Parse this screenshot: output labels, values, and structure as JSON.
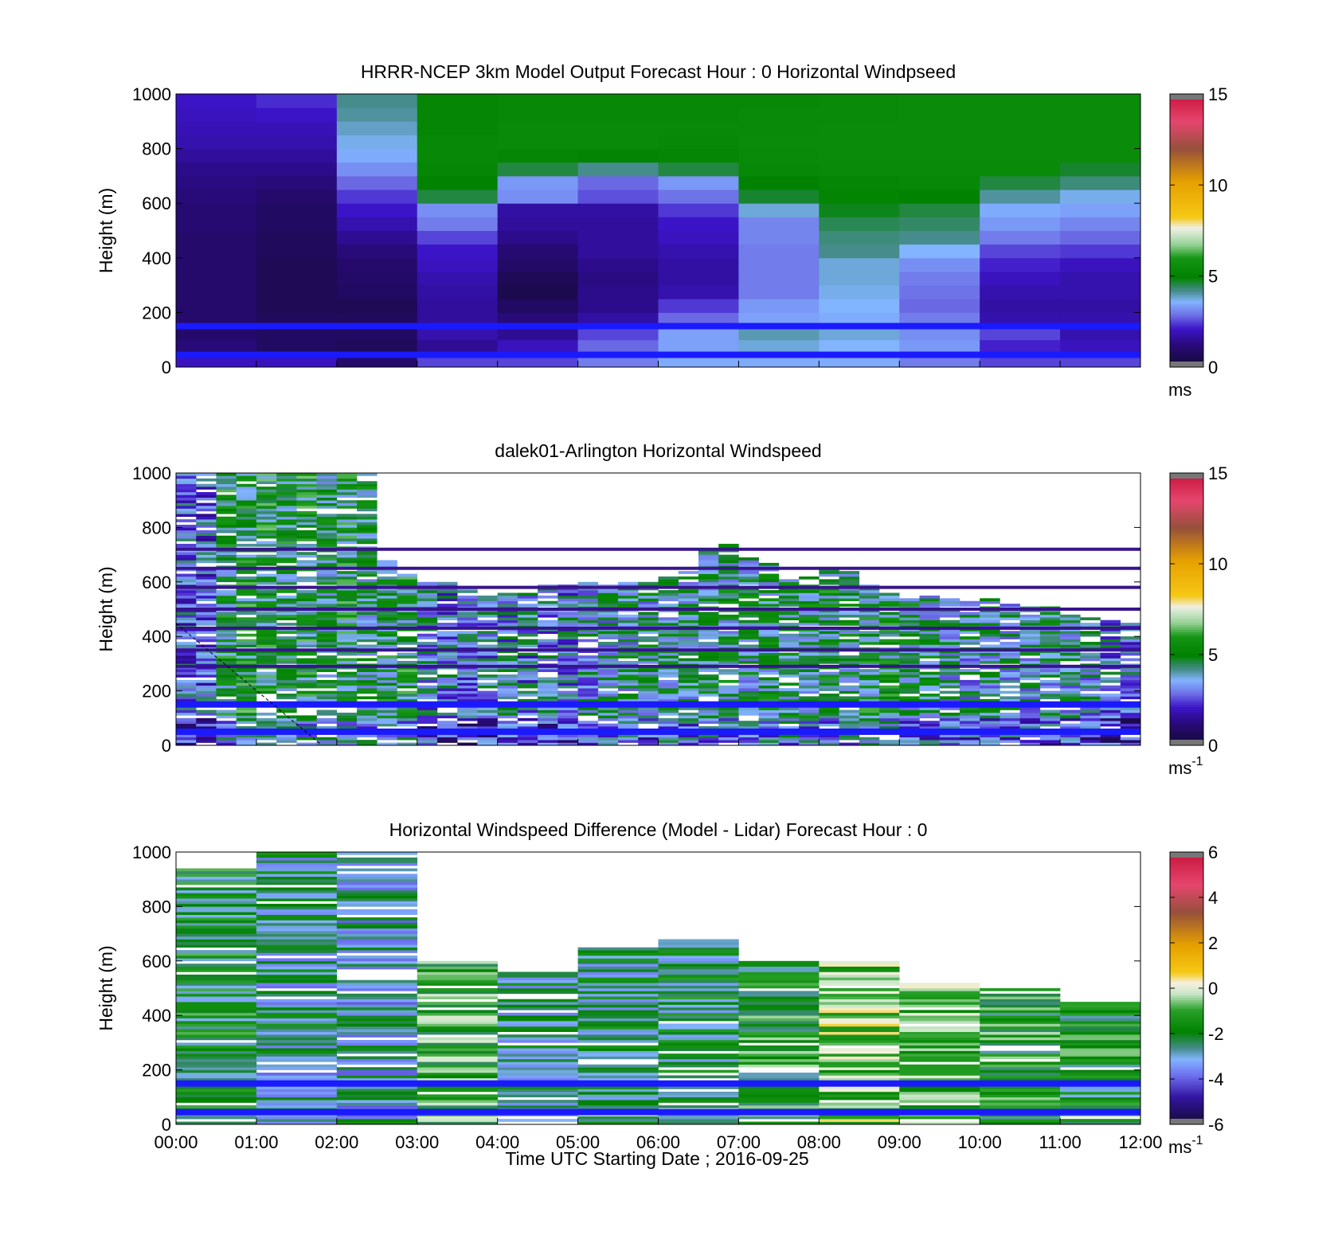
{
  "figure": {
    "xlabel": "Time UTC  Starting Date ; 2016-09-25",
    "x_ticks": [
      "00:00",
      "01:00",
      "02:00",
      "03:00",
      "04:00",
      "05:00",
      "06:00",
      "07:00",
      "08:00",
      "09:00",
      "10:00",
      "11:00",
      "12:00"
    ]
  },
  "chart_data": [
    {
      "type": "heatmap",
      "title": "HRRR-NCEP 3km Model Output   Forecast Hour : 0 Horizontal Windpseed",
      "ylabel": "Height (m)",
      "y_ticks": [
        "0",
        "200",
        "400",
        "600",
        "800",
        "1000"
      ],
      "xlim_hours": [
        0,
        12
      ],
      "ylim": [
        0,
        1000
      ],
      "colorbar": {
        "ticks": [
          "0",
          "5",
          "10",
          "15"
        ],
        "range": [
          0,
          15
        ],
        "unit": "ms",
        "unit_sup": ""
      },
      "heights": [
        25,
        75,
        125,
        175,
        225,
        275,
        325,
        375,
        425,
        475,
        525,
        575,
        625,
        675,
        725,
        775,
        825,
        875,
        925,
        975
      ],
      "time_hours": [
        0,
        1,
        2,
        3,
        4,
        5,
        6,
        7,
        8,
        9,
        10,
        11
      ],
      "values": [
        [
          2.0,
          2.0,
          1.0,
          2.5,
          2.5,
          3.0,
          3.5,
          3.5,
          3.5,
          3.0,
          2.5,
          2.5
        ],
        [
          1.2,
          0.8,
          0.7,
          1.5,
          2.0,
          2.8,
          3.4,
          3.8,
          3.6,
          3.3,
          2.2,
          2.0
        ],
        [
          1.0,
          0.8,
          0.8,
          1.8,
          1.5,
          2.5,
          3.4,
          4.0,
          3.8,
          3.2,
          2.5,
          1.8
        ],
        [
          1.0,
          0.7,
          0.7,
          1.6,
          1.2,
          1.7,
          2.8,
          3.4,
          3.5,
          3.0,
          1.8,
          1.8
        ],
        [
          1.0,
          0.6,
          0.6,
          1.6,
          0.8,
          1.4,
          2.4,
          3.3,
          3.6,
          2.8,
          1.7,
          1.7
        ],
        [
          1.0,
          0.6,
          0.8,
          1.7,
          0.5,
          1.4,
          1.8,
          3.0,
          3.7,
          2.9,
          1.8,
          1.8
        ],
        [
          1.0,
          0.6,
          0.9,
          1.8,
          0.6,
          1.3,
          1.7,
          3.0,
          3.8,
          3.0,
          2.0,
          1.8
        ],
        [
          1.0,
          0.6,
          1.0,
          2.0,
          0.9,
          1.4,
          1.7,
          3.0,
          3.8,
          3.2,
          2.2,
          2.0
        ],
        [
          1.0,
          0.7,
          1.2,
          2.1,
          1.1,
          1.6,
          1.8,
          3.0,
          4.2,
          3.6,
          2.5,
          2.4
        ],
        [
          1.0,
          0.7,
          1.5,
          2.5,
          1.4,
          1.6,
          2.0,
          3.1,
          4.3,
          4.2,
          3.0,
          2.8
        ],
        [
          1.1,
          0.8,
          1.8,
          3.0,
          1.6,
          1.6,
          2.1,
          3.1,
          4.5,
          4.4,
          3.3,
          3.1
        ],
        [
          1.1,
          0.8,
          2.1,
          3.2,
          1.7,
          1.7,
          2.4,
          3.8,
          4.8,
          4.6,
          3.5,
          3.4
        ],
        [
          1.2,
          1.0,
          2.4,
          4.6,
          3.2,
          2.6,
          2.9,
          4.7,
          5.1,
          5.0,
          4.1,
          3.7
        ],
        [
          1.3,
          1.2,
          2.8,
          5.0,
          3.3,
          2.8,
          3.3,
          5.0,
          5.2,
          5.3,
          4.6,
          4.3
        ],
        [
          1.4,
          1.4,
          3.2,
          5.2,
          4.6,
          4.2,
          4.6,
          5.3,
          5.4,
          5.4,
          5.4,
          4.7
        ],
        [
          1.6,
          1.6,
          3.5,
          5.3,
          5.2,
          5.1,
          5.2,
          5.4,
          5.5,
          5.5,
          5.5,
          5.5
        ],
        [
          1.8,
          1.8,
          3.7,
          5.3,
          5.4,
          5.4,
          5.3,
          5.5,
          5.5,
          5.5,
          5.5,
          5.5
        ],
        [
          1.9,
          1.9,
          3.9,
          5.2,
          5.4,
          5.4,
          5.4,
          5.4,
          5.5,
          5.5,
          5.5,
          5.5
        ],
        [
          2.0,
          2.1,
          4.1,
          5.2,
          5.3,
          5.3,
          5.3,
          5.4,
          5.4,
          5.5,
          5.5,
          5.5
        ],
        [
          2.1,
          2.3,
          4.2,
          5.2,
          5.3,
          5.3,
          5.3,
          5.3,
          5.4,
          5.5,
          5.5,
          5.5
        ]
      ],
      "highlight_rows_m": [
        45,
        150
      ]
    },
    {
      "type": "heatmap",
      "title": "dalek01-Arlington  Horizontal Windspeed",
      "ylabel": "Height (m)",
      "y_ticks": [
        "0",
        "200",
        "400",
        "600",
        "800",
        "1000"
      ],
      "xlim_hours": [
        0,
        12
      ],
      "ylim": [
        0,
        1000
      ],
      "colorbar": {
        "ticks": [
          "0",
          "5",
          "10",
          "15"
        ],
        "range": [
          0,
          15
        ],
        "unit": "ms",
        "unit_sup": "-1"
      },
      "description_hours": [
        0,
        0.25,
        0.5,
        0.75,
        1,
        1.25,
        1.5,
        1.75,
        2,
        2.25,
        2.5,
        2.75,
        3,
        3.25,
        3.5,
        3.75,
        4,
        4.25,
        4.5,
        4.75,
        5,
        5.25,
        5.5,
        5.75,
        6,
        6.25,
        6.5,
        6.75,
        7,
        7.25,
        7.5,
        7.75,
        8,
        8.25,
        8.5,
        8.75,
        9,
        9.25,
        9.5,
        9.75,
        10,
        10.25,
        10.5,
        10.75,
        11,
        11.25,
        11.5,
        11.75
      ],
      "mean_speed_by_column": [
        3.0,
        2.9,
        4.8,
        5.0,
        5.1,
        4.8,
        5.0,
        4.6,
        4.9,
        4.5,
        4.7,
        4.9,
        3.6,
        3.4,
        3.1,
        3.4,
        3.6,
        3.3,
        3.5,
        3.4,
        3.8,
        4.0,
        4.2,
        4.1,
        4.3,
        4.3,
        4.5,
        4.4,
        4.3,
        4.4,
        4.6,
        4.5,
        4.6,
        4.5,
        4.7,
        4.8,
        4.4,
        4.3,
        4.1,
        4.0,
        4.0,
        4.1,
        4.0,
        4.2,
        3.9,
        3.6,
        3.4,
        3.2
      ],
      "top_of_data_m": [
        1000,
        1000,
        1000,
        1000,
        1000,
        1000,
        1000,
        1000,
        1000,
        1000,
        680,
        640,
        600,
        600,
        580,
        560,
        560,
        560,
        600,
        590,
        600,
        590,
        600,
        600,
        620,
        650,
        720,
        740,
        700,
        670,
        620,
        630,
        650,
        640,
        590,
        560,
        550,
        550,
        540,
        540,
        540,
        520,
        510,
        510,
        480,
        470,
        460,
        450
      ],
      "highlight_rows_m": [
        50,
        150
      ],
      "level_lines_m": [
        290,
        350,
        430,
        500,
        580,
        650,
        720
      ]
    },
    {
      "type": "heatmap",
      "title": "Horizontal Windspeed Difference (Model - Lidar) Forecast Hour : 0",
      "ylabel": "Height (m)",
      "y_ticks": [
        "0",
        "200",
        "400",
        "600",
        "800",
        "1000"
      ],
      "xlim_hours": [
        0,
        12
      ],
      "ylim": [
        0,
        1000
      ],
      "colorbar": {
        "ticks": [
          "-6",
          "-4",
          "-2",
          "0",
          "2",
          "4",
          "6"
        ],
        "range": [
          -6,
          6
        ],
        "unit": "ms",
        "unit_sup": "-1"
      },
      "time_hours": [
        0,
        1,
        2,
        3,
        4,
        5,
        6,
        7,
        8,
        9,
        10,
        11
      ],
      "top_of_data_m": [
        940,
        1000,
        1000,
        600,
        560,
        650,
        680,
        600,
        600,
        520,
        500,
        450
      ],
      "mean_difference_by_hour": [
        -2.0,
        -2.6,
        -2.8,
        -1.2,
        -2.6,
        -2.4,
        -2.2,
        -1.6,
        -0.6,
        -1.0,
        -1.6,
        -1.8
      ],
      "highlight_rows_m": [
        45,
        150
      ]
    }
  ]
}
